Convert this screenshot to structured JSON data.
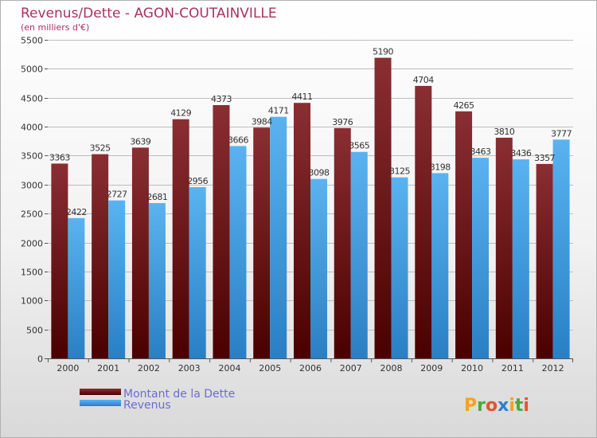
{
  "chart_data": {
    "type": "bar",
    "title": "Revenus/Dette - AGON-COUTAINVILLE",
    "subtitle": "(en milliers d'€)",
    "categories": [
      "2000",
      "2001",
      "2002",
      "2003",
      "2004",
      "2005",
      "2006",
      "2007",
      "2008",
      "2009",
      "2010",
      "2011",
      "2012"
    ],
    "series": [
      {
        "name": "Montant de la Dette",
        "color": "#6b1c1c",
        "values": [
          3363,
          3525,
          3639,
          4129,
          4373,
          3984,
          4411,
          3976,
          5190,
          4704,
          4265,
          3810,
          3357
        ]
      },
      {
        "name": "Revenus",
        "color": "#3a9ee0",
        "values": [
          2422,
          2727,
          2681,
          2956,
          3666,
          4171,
          3098,
          3565,
          3125,
          3198,
          3463,
          3436,
          3777
        ]
      }
    ],
    "ylim": [
      0,
      5500
    ],
    "yticks": [
      0,
      500,
      1000,
      1500,
      2000,
      2500,
      3000,
      3500,
      4000,
      4500,
      5000,
      5500
    ],
    "grid": true,
    "legend": "bottom-left",
    "xlabel": "",
    "ylabel": ""
  },
  "brand": {
    "logo_letters": [
      "P",
      "r",
      "o",
      "x",
      "i",
      "t",
      "i"
    ],
    "logo_colors": [
      "#f7a21b",
      "#4ba83a",
      "#e2562c",
      "#2c7fd0",
      "#f7a21b",
      "#4ba83a",
      "#e2562c"
    ]
  }
}
